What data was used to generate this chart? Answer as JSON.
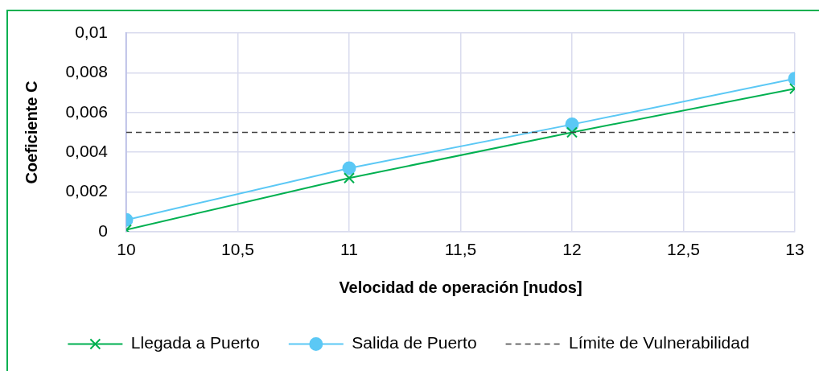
{
  "chart_data": {
    "type": "line",
    "xlabel": "Velocidad de operación [nudos]",
    "ylabel": "Coeficiente C",
    "x": [
      10,
      11,
      12,
      13
    ],
    "series": [
      {
        "name": "Llegada a Puerto",
        "color": "#00b050",
        "marker": "cross",
        "values": [
          0.0001,
          0.0027,
          0.005,
          0.0072
        ]
      },
      {
        "name": "Salida de Puerto",
        "color": "#5bc8f5",
        "marker": "circle",
        "values": [
          0.0006,
          0.0032,
          0.0054,
          0.0077
        ]
      }
    ],
    "xlim": [
      10,
      13
    ],
    "xticks": [
      10,
      {
        "value": 10.5,
        "label": "10,5"
      },
      11,
      {
        "value": 11.5,
        "label": "11,5"
      },
      12,
      {
        "value": 12.5,
        "label": "12,5"
      },
      13
    ],
    "ylim": [
      0,
      0.01
    ],
    "yticks": [
      0,
      {
        "value": 0.002,
        "label": "0,002"
      },
      {
        "value": 0.004,
        "label": "0,004"
      },
      {
        "value": 0.006,
        "label": "0,006"
      },
      {
        "value": 0.008,
        "label": "0,008"
      },
      {
        "value": 0.01,
        "label": "0,01"
      }
    ],
    "grid": true,
    "legend": "bottom",
    "ref_lines": [
      {
        "axis": "y",
        "value": 0.005,
        "label": "Límite de Vulnerabilidad",
        "color": "#404040",
        "line_style": "dashed"
      }
    ]
  }
}
